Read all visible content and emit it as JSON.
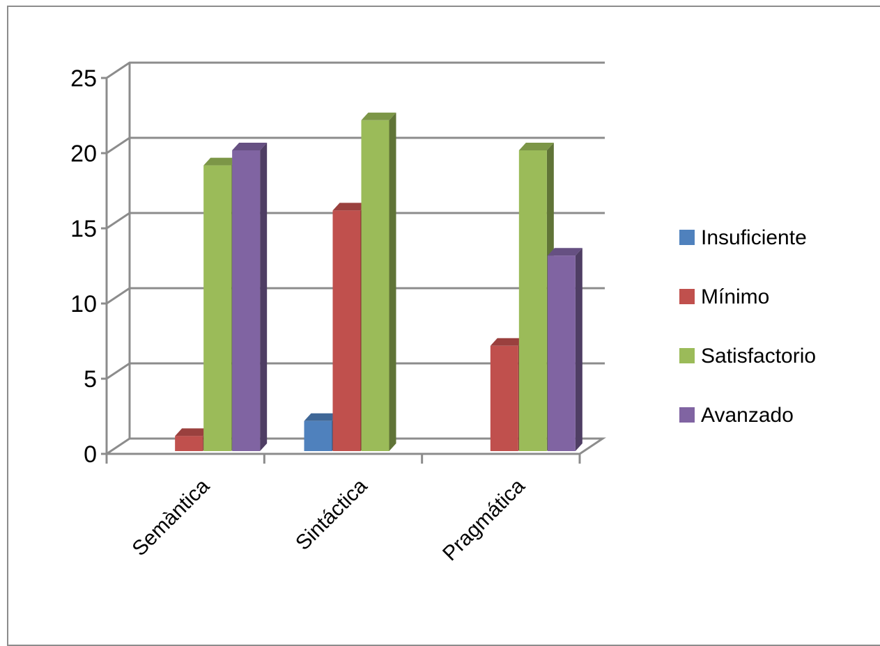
{
  "chart_data": {
    "type": "bar",
    "style": "3d-clustered-column",
    "categories": [
      "Semàntica",
      "Sintáctica",
      "Pragmática"
    ],
    "series": [
      {
        "name": "Insuficiente",
        "values": [
          0,
          2,
          0
        ],
        "color": "#4f81bd"
      },
      {
        "name": "Mínimo",
        "values": [
          1,
          16,
          7
        ],
        "color": "#c0504d"
      },
      {
        "name": "Satisfactorio",
        "values": [
          19,
          22,
          20
        ],
        "color": "#9bbb59"
      },
      {
        "name": "Avanzado",
        "values": [
          20,
          0,
          13
        ],
        "color": "#8064a2"
      }
    ],
    "ylim": [
      0,
      25
    ],
    "yticks": [
      "0",
      "5",
      "10",
      "15",
      "20",
      "25"
    ],
    "grid": true,
    "legend_position": "right",
    "title": "",
    "xlabel": "",
    "ylabel": ""
  }
}
